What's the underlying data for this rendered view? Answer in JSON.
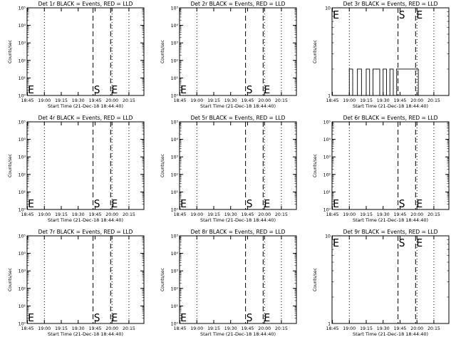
{
  "chart_data": [
    {
      "id": "1r",
      "type": "line",
      "title": "Det 1r BLACK = Events, RED = LLD",
      "xlabel": "Start Time (21-Dec-18 18:44:40)",
      "ylabel": "Counts/sec",
      "yscale": "log",
      "ylim": [
        1,
        100000
      ],
      "y_ticks": [
        "10⁰",
        "10¹",
        "10²",
        "10³",
        "10⁴",
        "10⁵"
      ],
      "x_ticks": [
        "18:45",
        "19:00",
        "19:15",
        "19:30",
        "19:45",
        "20:00",
        "20:15"
      ],
      "markers": [
        "E",
        "S",
        "E"
      ],
      "series": []
    },
    {
      "id": "2r",
      "type": "line",
      "title": "Det 2r BLACK = Events, RED = LLD",
      "xlabel": "Start Time (21-Dec-18 18:44:40)",
      "ylabel": "Counts/sec",
      "yscale": "log",
      "ylim": [
        1,
        100000
      ],
      "y_ticks": [
        "10⁰",
        "10¹",
        "10²",
        "10³",
        "10⁴",
        "10⁵"
      ],
      "x_ticks": [
        "18:45",
        "19:00",
        "19:15",
        "19:30",
        "19:45",
        "20:00",
        "20:15"
      ],
      "markers": [
        "E",
        "S",
        "E"
      ],
      "series": []
    },
    {
      "id": "3r",
      "type": "line",
      "title": "Det 3r BLACK = Events, RED = LLD",
      "xlabel": "Start Time (21-Dec-18 18:44:40)",
      "ylabel": "Counts/sec",
      "yscale": "log",
      "ylim": [
        1,
        10
      ],
      "y_ticks": [
        "1",
        "10"
      ],
      "x_ticks": [
        "18:45",
        "19:00",
        "19:15",
        "19:30",
        "19:45",
        "20:00",
        "20:15"
      ],
      "markers": [
        "E",
        "S",
        "E"
      ],
      "series": [
        {
          "name": "Events",
          "x": [
            18.8,
            19.0,
            19.05,
            19.12,
            19.18,
            19.25,
            19.3,
            19.35,
            19.4,
            19.45,
            19.5,
            19.55,
            19.6,
            19.65,
            19.7,
            20.0,
            20.02
          ],
          "y": [
            1,
            2,
            1,
            2,
            1,
            2,
            1,
            2,
            2,
            1,
            2,
            1,
            2,
            1,
            2,
            2,
            1
          ]
        }
      ]
    },
    {
      "id": "4r",
      "type": "line",
      "title": "Det 4r BLACK = Events, RED = LLD",
      "xlabel": "Start Time (21-Dec-18 18:44:40)",
      "ylabel": "Counts/sec",
      "yscale": "log",
      "ylim": [
        1,
        100000
      ],
      "y_ticks": [
        "10⁰",
        "10¹",
        "10²",
        "10³",
        "10⁴",
        "10⁵"
      ],
      "x_ticks": [
        "18:45",
        "19:00",
        "19:15",
        "19:30",
        "19:45",
        "20:00",
        "20:15"
      ],
      "markers": [
        "E",
        "S",
        "E"
      ],
      "series": []
    },
    {
      "id": "5r",
      "type": "line",
      "title": "Det 5r BLACK = Events, RED = LLD",
      "xlabel": "Start Time (21-Dec-18 18:44:40)",
      "ylabel": "Counts/sec",
      "yscale": "log",
      "ylim": [
        1,
        100000
      ],
      "y_ticks": [
        "10⁰",
        "10¹",
        "10²",
        "10³",
        "10⁴",
        "10⁵"
      ],
      "x_ticks": [
        "18:45",
        "19:00",
        "19:15",
        "19:30",
        "19:45",
        "20:00",
        "20:15"
      ],
      "markers": [
        "E",
        "S",
        "E"
      ],
      "series": []
    },
    {
      "id": "6r",
      "type": "line",
      "title": "Det 6r BLACK = Events, RED = LLD",
      "xlabel": "Start Time (21-Dec-18 18:44:40)",
      "ylabel": "Counts/sec",
      "yscale": "log",
      "ylim": [
        1,
        100000
      ],
      "y_ticks": [
        "10⁰",
        "10¹",
        "10²",
        "10³",
        "10⁴",
        "10⁵"
      ],
      "x_ticks": [
        "18:45",
        "19:00",
        "19:15",
        "19:30",
        "19:45",
        "20:00",
        "20:15"
      ],
      "markers": [
        "E",
        "S",
        "E"
      ],
      "series": []
    },
    {
      "id": "7r",
      "type": "line",
      "title": "Det 7r BLACK = Events, RED = LLD",
      "xlabel": "Start Time (21-Dec-18 18:44:40)",
      "ylabel": "Counts/sec",
      "yscale": "log",
      "ylim": [
        1,
        100000
      ],
      "y_ticks": [
        "10⁰",
        "10¹",
        "10²",
        "10³",
        "10⁴",
        "10⁵"
      ],
      "x_ticks": [
        "18:45",
        "19:00",
        "19:15",
        "19:30",
        "19:45",
        "20:00",
        "20:15"
      ],
      "markers": [
        "E",
        "S",
        "E"
      ],
      "series": []
    },
    {
      "id": "8r",
      "type": "line",
      "title": "Det 8r BLACK = Events, RED = LLD",
      "xlabel": "Start Time (21-Dec-18 18:44:40)",
      "ylabel": "Counts/sec",
      "yscale": "log",
      "ylim": [
        1,
        100000
      ],
      "y_ticks": [
        "10⁰",
        "10¹",
        "10²",
        "10³",
        "10⁴",
        "10⁵"
      ],
      "x_ticks": [
        "18:45",
        "19:00",
        "19:15",
        "19:30",
        "19:45",
        "20:00",
        "20:15"
      ],
      "markers": [
        "E",
        "S",
        "E"
      ],
      "series": []
    },
    {
      "id": "9r",
      "type": "line",
      "title": "Det 9r BLACK = Events, RED = LLD",
      "xlabel": "Start Time (21-Dec-18 18:44:40)",
      "ylabel": "Counts/sec",
      "yscale": "log",
      "ylim": [
        1,
        10
      ],
      "y_ticks": [
        "1",
        "10"
      ],
      "x_ticks": [
        "18:45",
        "19:00",
        "19:15",
        "19:30",
        "19:45",
        "20:00",
        "20:15"
      ],
      "markers": [
        "E",
        "S",
        "E"
      ],
      "series": []
    }
  ]
}
